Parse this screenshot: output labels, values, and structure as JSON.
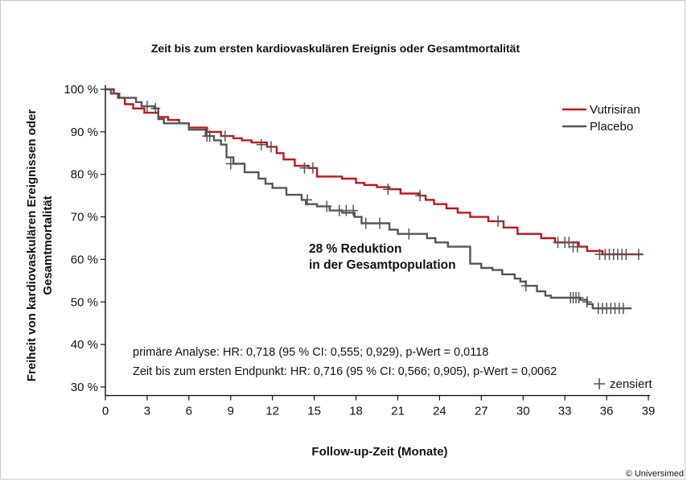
{
  "chart_data": {
    "type": "line",
    "title": "Zeit bis zum ersten kardiovaskulären Ereignis oder Gesamtmortalität",
    "xlabel": "Follow-up-Zeit (Monate)",
    "ylabel_lines": [
      "Freiheit von kardiovaskulären Ereignissen oder",
      "Gesamtmortalität"
    ],
    "x_ticks": [
      0,
      3,
      6,
      9,
      12,
      15,
      18,
      21,
      24,
      27,
      30,
      33,
      36,
      39
    ],
    "y_ticks": [
      30,
      40,
      50,
      60,
      70,
      80,
      90,
      100
    ],
    "y_tick_labels": [
      "30 %",
      "40 %",
      "50 %",
      "60 %",
      "70 %",
      "80 %",
      "90 %",
      "100 %"
    ],
    "xlim": [
      0,
      39
    ],
    "ylim": [
      28,
      101
    ],
    "grid": false,
    "legend_position": "top-right",
    "series": [
      {
        "name": "Vutrisiran",
        "color": "#c0161d",
        "steps": [
          [
            0,
            100
          ],
          [
            0.6,
            99
          ],
          [
            1.0,
            98
          ],
          [
            1.4,
            96.5
          ],
          [
            2.0,
            95.5
          ],
          [
            2.8,
            94.5
          ],
          [
            3.8,
            93.5
          ],
          [
            4.5,
            92.8
          ],
          [
            5.3,
            92
          ],
          [
            6.0,
            91
          ],
          [
            7.3,
            90
          ],
          [
            8.3,
            89
          ],
          [
            9.2,
            88.5
          ],
          [
            9.8,
            88
          ],
          [
            10.5,
            87.5
          ],
          [
            11.6,
            86.5
          ],
          [
            12.3,
            85
          ],
          [
            12.8,
            83.5
          ],
          [
            13.6,
            82
          ],
          [
            14.6,
            81.5
          ],
          [
            15.2,
            79.5
          ],
          [
            17.0,
            79
          ],
          [
            18.0,
            78
          ],
          [
            18.6,
            77.5
          ],
          [
            19.5,
            77
          ],
          [
            20.4,
            76.5
          ],
          [
            21.2,
            75.5
          ],
          [
            22.5,
            75
          ],
          [
            23.0,
            74
          ],
          [
            23.6,
            73
          ],
          [
            24.5,
            72
          ],
          [
            25.3,
            71
          ],
          [
            26.2,
            70
          ],
          [
            27.5,
            69
          ],
          [
            28.6,
            67.5
          ],
          [
            29.6,
            66
          ],
          [
            31.3,
            65
          ],
          [
            32.3,
            64
          ],
          [
            34.0,
            63
          ],
          [
            34.6,
            62
          ],
          [
            35.7,
            61.2
          ],
          [
            38.6,
            61.2
          ]
        ],
        "censor": [
          [
            7.5,
            89
          ],
          [
            8.6,
            89
          ],
          [
            11.2,
            87
          ],
          [
            11.9,
            86.5
          ],
          [
            14.3,
            81.5
          ],
          [
            14.9,
            81.5
          ],
          [
            20.3,
            76.5
          ],
          [
            22.6,
            75
          ],
          [
            28.2,
            69
          ],
          [
            32.5,
            64
          ],
          [
            33.0,
            64
          ],
          [
            33.3,
            64
          ],
          [
            33.6,
            63
          ],
          [
            33.9,
            63
          ],
          [
            35.5,
            61.2
          ],
          [
            35.9,
            61.2
          ],
          [
            36.2,
            61.2
          ],
          [
            36.5,
            61.2
          ],
          [
            36.8,
            61.2
          ],
          [
            37.1,
            61.2
          ],
          [
            37.4,
            61.2
          ],
          [
            38.3,
            61.2
          ]
        ]
      },
      {
        "name": "Placebo",
        "color": "#555555",
        "steps": [
          [
            0,
            100
          ],
          [
            0.4,
            99
          ],
          [
            0.9,
            98
          ],
          [
            2.2,
            97
          ],
          [
            2.6,
            96
          ],
          [
            3.5,
            95.5
          ],
          [
            3.8,
            93
          ],
          [
            4.2,
            92
          ],
          [
            6.0,
            90.5
          ],
          [
            7.2,
            89
          ],
          [
            7.8,
            88
          ],
          [
            8.3,
            87
          ],
          [
            8.7,
            84
          ],
          [
            9.2,
            82.5
          ],
          [
            10.0,
            80.5
          ],
          [
            11.0,
            79
          ],
          [
            11.5,
            77.8
          ],
          [
            12.0,
            76.8
          ],
          [
            13.0,
            75.2
          ],
          [
            14.1,
            74
          ],
          [
            14.4,
            73
          ],
          [
            15.2,
            72.5
          ],
          [
            16.1,
            71.5
          ],
          [
            17.0,
            71
          ],
          [
            17.9,
            70
          ],
          [
            18.4,
            68.5
          ],
          [
            20.4,
            67
          ],
          [
            21.0,
            66
          ],
          [
            23.1,
            65
          ],
          [
            23.7,
            64
          ],
          [
            24.6,
            63
          ],
          [
            26.2,
            59
          ],
          [
            27.0,
            58
          ],
          [
            27.8,
            57.5
          ],
          [
            28.5,
            56.5
          ],
          [
            29.4,
            55.5
          ],
          [
            29.8,
            54.8
          ],
          [
            30.2,
            53.8
          ],
          [
            31.0,
            52.5
          ],
          [
            31.6,
            51.5
          ],
          [
            32.0,
            51
          ],
          [
            34.1,
            50.5
          ],
          [
            34.6,
            49.5
          ],
          [
            35.0,
            48.5
          ],
          [
            37.8,
            48.5
          ]
        ],
        "censor": [
          [
            3.0,
            96
          ],
          [
            3.6,
            95.5
          ],
          [
            7.3,
            89
          ],
          [
            9.0,
            82.5
          ],
          [
            14.5,
            74
          ],
          [
            15.9,
            72.5
          ],
          [
            16.8,
            71.5
          ],
          [
            17.3,
            71.5
          ],
          [
            17.8,
            71.5
          ],
          [
            18.7,
            68.5
          ],
          [
            19.7,
            68.5
          ],
          [
            21.8,
            66
          ],
          [
            30.2,
            53.8
          ],
          [
            33.4,
            51
          ],
          [
            33.6,
            51
          ],
          [
            33.8,
            51
          ],
          [
            34.0,
            51
          ],
          [
            34.6,
            50
          ],
          [
            35.4,
            48.5
          ],
          [
            35.7,
            48.5
          ],
          [
            36.0,
            48.5
          ],
          [
            36.3,
            48.5
          ],
          [
            36.6,
            48.5
          ],
          [
            36.9,
            48.5
          ],
          [
            37.2,
            48.5
          ]
        ]
      }
    ],
    "legend_censor_label": "zensiert",
    "annotation_lines": [
      "28 % Reduktion",
      "in der Gesamtpopulation"
    ],
    "stats_lines": [
      "primäre Analyse: HR: 0,718 (95 % CI: 0,555; 0,929), p-Wert = 0,0118",
      "Zeit bis zum ersten Endpunkt: HR: 0,716 (95 % CI: 0,566; 0,905), p-Wert = 0,0062"
    ],
    "copyright": "© Universimed"
  }
}
